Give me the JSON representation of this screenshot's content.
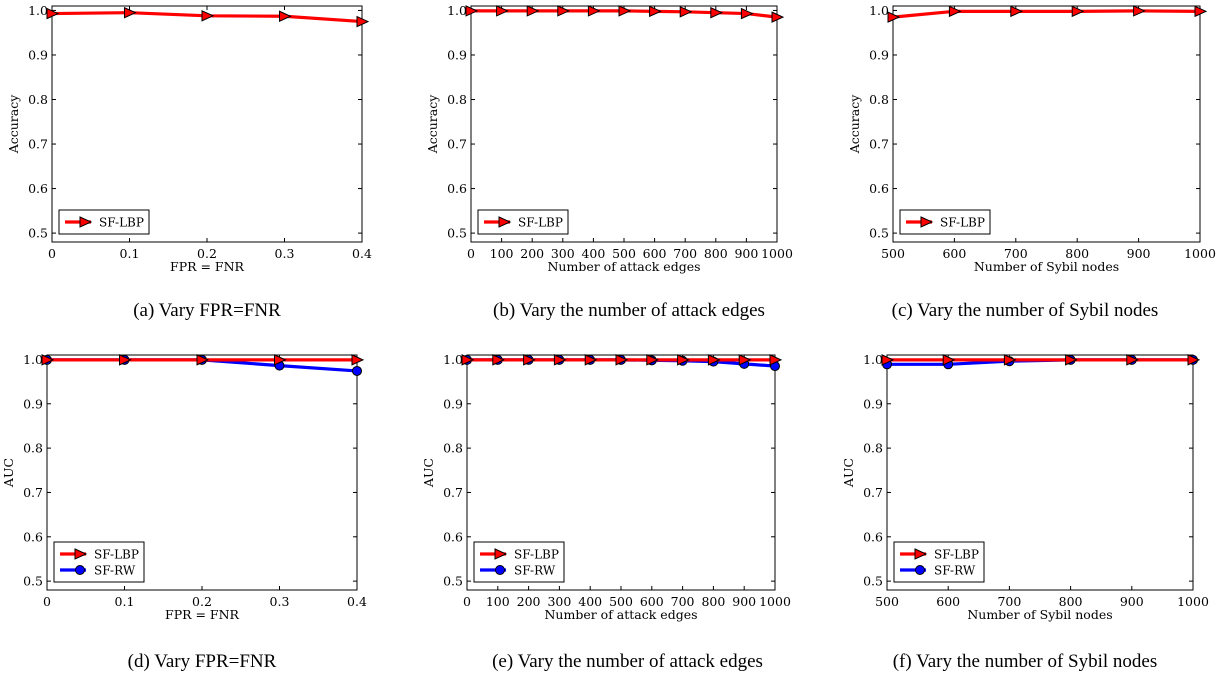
{
  "colors": {
    "sf_lbp": "#ff0000",
    "sf_rw": "#0000ff",
    "axis": "#000000",
    "background": "#ffffff"
  },
  "chart_data": [
    {
      "id": "a",
      "type": "line",
      "caption": "(a) Vary FPR=FNR",
      "xlabel": "FPR = FNR",
      "ylabel": "Accuracy",
      "xlim": [
        0,
        0.4
      ],
      "ylim": [
        0.48,
        1.01
      ],
      "xticks": [
        0,
        0.1,
        0.2,
        0.3,
        0.4
      ],
      "xtick_labels": [
        "0",
        "0.1",
        "0.2",
        "0.3",
        "0.4"
      ],
      "yticks": [
        0.5,
        0.6,
        0.7,
        0.8,
        0.9,
        1.0
      ],
      "ytick_labels": [
        "0.5",
        "0.6",
        "0.7",
        "0.8",
        "0.9",
        "1.0"
      ],
      "legend": "lower-left",
      "grid": false,
      "x": [
        0,
        0.1,
        0.2,
        0.3,
        0.4
      ],
      "series": [
        {
          "name": "SF-LBP",
          "marker": "triangle",
          "color": "#ff0000",
          "values": [
            0.993,
            0.995,
            0.988,
            0.987,
            0.975
          ]
        }
      ]
    },
    {
      "id": "b",
      "type": "line",
      "caption": "(b) Vary the number of attack edges",
      "xlabel": "Number of attack edges",
      "ylabel": "Accuracy",
      "xlim": [
        0,
        1000
      ],
      "ylim": [
        0.48,
        1.01
      ],
      "xticks": [
        0,
        100,
        200,
        300,
        400,
        500,
        600,
        700,
        800,
        900,
        1000
      ],
      "xtick_labels": [
        "0",
        "100",
        "200",
        "300",
        "400",
        "500",
        "600",
        "700",
        "800",
        "900",
        "1000"
      ],
      "yticks": [
        0.5,
        0.6,
        0.7,
        0.8,
        0.9,
        1.0
      ],
      "ytick_labels": [
        "0.5",
        "0.6",
        "0.7",
        "0.8",
        "0.9",
        "1.0"
      ],
      "legend": "lower-left",
      "grid": false,
      "x": [
        0,
        100,
        200,
        300,
        400,
        500,
        600,
        700,
        800,
        900,
        1000
      ],
      "series": [
        {
          "name": "SF-LBP",
          "marker": "triangle",
          "color": "#ff0000",
          "values": [
            0.999,
            0.999,
            0.999,
            0.999,
            0.999,
            0.999,
            0.998,
            0.997,
            0.995,
            0.993,
            0.985
          ]
        }
      ]
    },
    {
      "id": "c",
      "type": "line",
      "caption": "(c) Vary the number of Sybil nodes",
      "xlabel": "Number of Sybil nodes",
      "ylabel": "Accuracy",
      "xlim": [
        500,
        1000
      ],
      "ylim": [
        0.48,
        1.01
      ],
      "xticks": [
        500,
        600,
        700,
        800,
        900,
        1000
      ],
      "xtick_labels": [
        "500",
        "600",
        "700",
        "800",
        "900",
        "1000"
      ],
      "yticks": [
        0.5,
        0.6,
        0.7,
        0.8,
        0.9,
        1.0
      ],
      "ytick_labels": [
        "0.5",
        "0.6",
        "0.7",
        "0.8",
        "0.9",
        "1.0"
      ],
      "legend": "lower-left",
      "grid": false,
      "x": [
        500,
        600,
        700,
        800,
        900,
        1000
      ],
      "series": [
        {
          "name": "SF-LBP",
          "marker": "triangle",
          "color": "#ff0000",
          "values": [
            0.985,
            0.998,
            0.998,
            0.998,
            0.999,
            0.998
          ]
        }
      ]
    },
    {
      "id": "d",
      "type": "line",
      "caption": "(d) Vary FPR=FNR",
      "xlabel": "FPR = FNR",
      "ylabel": "AUC",
      "xlim": [
        0,
        0.4
      ],
      "ylim": [
        0.48,
        1.01
      ],
      "xticks": [
        0,
        0.1,
        0.2,
        0.3,
        0.4
      ],
      "xtick_labels": [
        "0",
        "0.1",
        "0.2",
        "0.3",
        "0.4"
      ],
      "yticks": [
        0.5,
        0.6,
        0.7,
        0.8,
        0.9,
        1.0
      ],
      "ytick_labels": [
        "0.5",
        "0.6",
        "0.7",
        "0.8",
        "0.9",
        "1.0"
      ],
      "legend": "lower-left",
      "grid": false,
      "x": [
        0,
        0.1,
        0.2,
        0.3,
        0.4
      ],
      "series": [
        {
          "name": "SF-LBP",
          "marker": "triangle",
          "color": "#ff0000",
          "values": [
            0.999,
            0.999,
            0.999,
            0.999,
            0.999
          ]
        },
        {
          "name": "SF-RW",
          "marker": "circle",
          "color": "#0000ff",
          "values": [
            0.999,
            0.999,
            0.999,
            0.986,
            0.974
          ]
        }
      ]
    },
    {
      "id": "e",
      "type": "line",
      "caption": "(e) Vary the number of attack edges",
      "xlabel": "Number of attack edges",
      "ylabel": "AUC",
      "xlim": [
        0,
        1000
      ],
      "ylim": [
        0.48,
        1.01
      ],
      "xticks": [
        0,
        100,
        200,
        300,
        400,
        500,
        600,
        700,
        800,
        900,
        1000
      ],
      "xtick_labels": [
        "0",
        "100",
        "200",
        "300",
        "400",
        "500",
        "600",
        "700",
        "800",
        "900",
        "1000"
      ],
      "yticks": [
        0.5,
        0.6,
        0.7,
        0.8,
        0.9,
        1.0
      ],
      "ytick_labels": [
        "0.5",
        "0.6",
        "0.7",
        "0.8",
        "0.9",
        "1.0"
      ],
      "legend": "lower-left",
      "grid": false,
      "x": [
        0,
        100,
        200,
        300,
        400,
        500,
        600,
        700,
        800,
        900,
        1000
      ],
      "series": [
        {
          "name": "SF-LBP",
          "marker": "triangle",
          "color": "#ff0000",
          "values": [
            0.999,
            0.999,
            0.999,
            0.999,
            0.999,
            0.999,
            0.999,
            0.999,
            0.999,
            0.999,
            0.999
          ]
        },
        {
          "name": "SF-RW",
          "marker": "circle",
          "color": "#0000ff",
          "values": [
            0.999,
            0.999,
            0.999,
            0.999,
            0.999,
            0.999,
            0.998,
            0.997,
            0.995,
            0.99,
            0.985
          ]
        }
      ]
    },
    {
      "id": "f",
      "type": "line",
      "caption": "(f) Vary the number of Sybil nodes",
      "xlabel": "Number of Sybil nodes",
      "ylabel": "AUC",
      "xlim": [
        500,
        1000
      ],
      "ylim": [
        0.48,
        1.01
      ],
      "xticks": [
        500,
        600,
        700,
        800,
        900,
        1000
      ],
      "xtick_labels": [
        "500",
        "600",
        "700",
        "800",
        "900",
        "1000"
      ],
      "yticks": [
        0.5,
        0.6,
        0.7,
        0.8,
        0.9,
        1.0
      ],
      "ytick_labels": [
        "0.5",
        "0.6",
        "0.7",
        "0.8",
        "0.9",
        "1.0"
      ],
      "legend": "lower-left",
      "grid": false,
      "x": [
        500,
        600,
        700,
        800,
        900,
        1000
      ],
      "series": [
        {
          "name": "SF-LBP",
          "marker": "triangle",
          "color": "#ff0000",
          "values": [
            0.999,
            0.999,
            0.999,
            0.999,
            0.999,
            0.999
          ]
        },
        {
          "name": "SF-RW",
          "marker": "circle",
          "color": "#0000ff",
          "values": [
            0.989,
            0.989,
            0.996,
            0.999,
            0.999,
            0.999
          ]
        }
      ]
    }
  ]
}
